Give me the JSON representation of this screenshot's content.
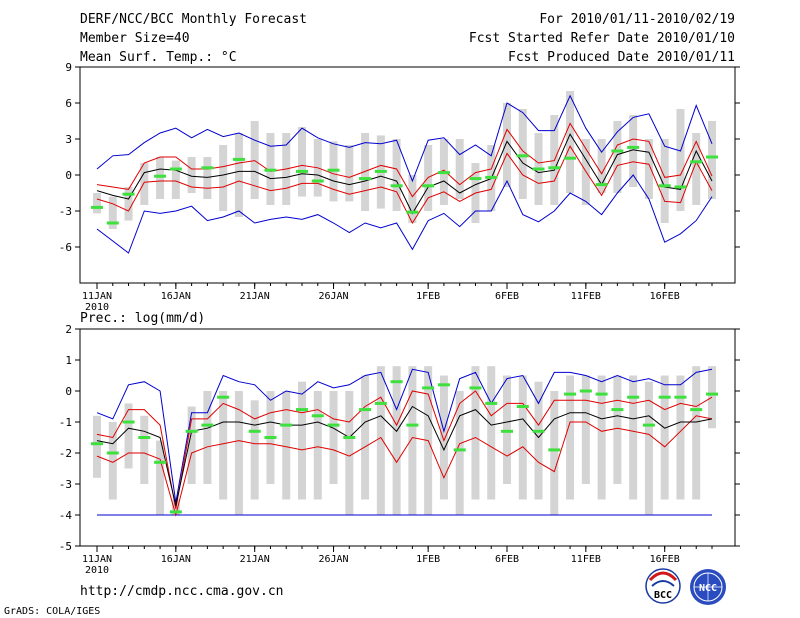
{
  "header": {
    "title": "DERF/NCC/BCC Monthly Forecast",
    "member_size": "Member Size=40",
    "variable": "Mean Surf. Temp.: °C",
    "period": "For 2010/01/11-2010/02/19",
    "start_date": "Fcst Started Refer Date 2010/01/10",
    "produced_date": "Fcst Produced Date 2010/01/11"
  },
  "footer": {
    "url": "http://cmdp.ncc.cma.gov.cn",
    "credit": "GrADS: COLA/IGES",
    "logo_bcc": "BCC",
    "logo_ncc": "NCC"
  },
  "colors": {
    "box": "#d4d4d4",
    "mean": "#000000",
    "spread": "#e00000",
    "extreme": "#0000d0",
    "observed": "#3ee03e"
  },
  "chart_data": [
    {
      "type": "box-plume",
      "name": "temperature",
      "ylabel": "Mean Surf. Temp.: °C",
      "ylim": [
        -9,
        9
      ],
      "yticks": [
        -6,
        -3,
        0,
        3,
        6,
        9
      ],
      "day_count": 40,
      "date_ticks": [
        {
          "day": 0,
          "label": "11JAN",
          "sub": "2010"
        },
        {
          "day": 5,
          "label": "16JAN"
        },
        {
          "day": 10,
          "label": "21JAN"
        },
        {
          "day": 15,
          "label": "26JAN"
        },
        {
          "day": 21,
          "label": "1FEB"
        },
        {
          "day": 26,
          "label": "6FEB"
        },
        {
          "day": 31,
          "label": "11FEB"
        },
        {
          "day": 36,
          "label": "16FEB"
        }
      ],
      "series": {
        "box_low": [
          -3.2,
          -4.5,
          -3.8,
          -2.5,
          -2.0,
          -2.0,
          -1.5,
          -2.0,
          -3.0,
          -3.5,
          -2.0,
          -2.5,
          -2.5,
          -1.8,
          -1.8,
          -2.2,
          -2.2,
          -3.0,
          -2.8,
          -3.0,
          -4.0,
          -3.0,
          -2.5,
          -2.0,
          -4.0,
          -3.0,
          -1.0,
          -2.0,
          -2.5,
          -2.5,
          -1.5,
          -2.5,
          -1.5,
          -1.5,
          -1.0,
          -2.0,
          -4.0,
          -3.0,
          -2.5,
          -2.0
        ],
        "box_high": [
          -1.5,
          -1.8,
          -1.0,
          1.0,
          1.5,
          1.2,
          1.5,
          1.5,
          2.5,
          3.5,
          4.5,
          3.5,
          3.5,
          4.0,
          3.0,
          2.8,
          2.5,
          3.5,
          3.3,
          3.0,
          0.0,
          2.5,
          3.0,
          3.0,
          1.0,
          2.5,
          6.0,
          5.5,
          3.5,
          5.0,
          7.0,
          3.0,
          3.0,
          4.5,
          5.0,
          3.0,
          3.0,
          5.5,
          3.5,
          4.5
        ],
        "min": [
          -4.5,
          -5.5,
          -6.5,
          -3.0,
          -3.2,
          -3.0,
          -2.6,
          -3.8,
          -3.5,
          -3.0,
          -4.0,
          -3.7,
          -3.5,
          -3.7,
          -3.3,
          -4.0,
          -4.8,
          -4.0,
          -4.4,
          -4.0,
          -6.2,
          -3.8,
          -3.2,
          -4.3,
          -3.0,
          -3.0,
          -0.5,
          -3.3,
          -3.9,
          -3.0,
          -1.5,
          -2.2,
          -3.3,
          -1.5,
          0.0,
          -2.0,
          -5.6,
          -4.9,
          -3.8,
          -1.8
        ],
        "max": [
          0.5,
          1.6,
          1.7,
          2.7,
          3.5,
          3.9,
          3.1,
          3.8,
          3.2,
          3.5,
          2.9,
          2.4,
          2.5,
          3.9,
          3.1,
          2.6,
          2.3,
          2.7,
          2.6,
          2.9,
          -0.5,
          2.9,
          3.1,
          1.7,
          2.5,
          1.6,
          6.0,
          5.2,
          3.7,
          3.7,
          6.6,
          3.9,
          1.9,
          3.6,
          4.8,
          5.1,
          2.4,
          2.0,
          5.8,
          2.6
        ],
        "hi": [
          -0.8,
          -1.0,
          -1.2,
          1.0,
          1.5,
          1.5,
          0.5,
          0.5,
          0.7,
          1.0,
          1.2,
          0.3,
          0.5,
          0.8,
          0.6,
          0.1,
          -0.2,
          0.3,
          0.8,
          0.5,
          -1.8,
          -0.2,
          0.4,
          -0.8,
          0.2,
          0.5,
          3.8,
          2.0,
          1.0,
          1.2,
          4.3,
          2.2,
          0.1,
          2.5,
          3.0,
          2.8,
          -0.2,
          0.0,
          2.8,
          -0.1
        ],
        "mean": [
          -1.3,
          -1.7,
          -2.0,
          0.2,
          0.5,
          0.4,
          -0.1,
          -0.2,
          0.0,
          0.3,
          0.3,
          -0.3,
          -0.2,
          0.1,
          0.0,
          -0.5,
          -0.8,
          -0.5,
          -0.1,
          -0.5,
          -3.2,
          -1.0,
          -0.5,
          -1.5,
          -0.8,
          -0.3,
          2.8,
          1.0,
          0.2,
          0.4,
          3.4,
          1.3,
          -0.8,
          1.7,
          2.1,
          1.9,
          -1.0,
          -1.2,
          2.0,
          -0.5
        ],
        "lo": [
          -2.0,
          -2.4,
          -3.0,
          -0.6,
          -0.5,
          -0.5,
          -1.0,
          -1.1,
          -1.0,
          -0.5,
          -0.9,
          -1.3,
          -1.1,
          -0.7,
          -0.7,
          -1.2,
          -1.6,
          -1.3,
          -1.0,
          -1.4,
          -4.0,
          -1.9,
          -1.4,
          -2.2,
          -1.5,
          -1.2,
          1.8,
          0.0,
          -0.7,
          -0.5,
          2.4,
          0.3,
          -1.7,
          0.8,
          1.1,
          0.9,
          -2.2,
          -2.3,
          1.1,
          -1.3
        ],
        "observed": [
          -2.7,
          -4.0,
          -1.6,
          null,
          -0.1,
          0.5,
          null,
          0.6,
          null,
          1.3,
          null,
          0.4,
          null,
          0.3,
          -0.5,
          0.4,
          null,
          -0.3,
          0.3,
          -0.9,
          -3.1,
          -0.9,
          0.2,
          null,
          -0.3,
          -0.2,
          null,
          1.6,
          0.5,
          0.6,
          1.4,
          null,
          -0.8,
          2.0,
          2.3,
          null,
          -0.9,
          -1.0,
          1.1,
          1.5
        ]
      }
    },
    {
      "type": "box-plume",
      "name": "precipitation",
      "ylabel": "Prec.: log(mm/d)",
      "ylim": [
        -5,
        2
      ],
      "yticks": [
        -5,
        -4,
        -3,
        -2,
        -1,
        0,
        1,
        2
      ],
      "day_count": 40,
      "date_ticks": [
        {
          "day": 0,
          "label": "11JAN",
          "sub": "2010"
        },
        {
          "day": 5,
          "label": "16JAN"
        },
        {
          "day": 10,
          "label": "21JAN"
        },
        {
          "day": 15,
          "label": "26JAN"
        },
        {
          "day": 21,
          "label": "1FEB"
        },
        {
          "day": 26,
          "label": "6FEB"
        },
        {
          "day": 31,
          "label": "11FEB"
        },
        {
          "day": 36,
          "label": "16FEB"
        }
      ],
      "series": {
        "box_low": [
          -2.8,
          -3.5,
          -2.5,
          -3.0,
          -4.0,
          -4.0,
          -3.0,
          -3.0,
          -3.5,
          -4.0,
          -3.5,
          -3.0,
          -3.5,
          -3.5,
          -3.5,
          -3.0,
          -4.0,
          -3.5,
          -4.0,
          -4.0,
          -4.0,
          -4.0,
          -3.5,
          -4.0,
          -3.5,
          -3.5,
          -3.0,
          -3.5,
          -3.5,
          -4.0,
          -3.5,
          -3.0,
          -3.5,
          -3.0,
          -3.5,
          -4.0,
          -3.5,
          -3.5,
          -3.5,
          -1.2
        ],
        "box_high": [
          -0.8,
          -1.0,
          -0.4,
          -0.8,
          -1.6,
          -3.5,
          -0.5,
          0.0,
          0.0,
          0.0,
          -0.3,
          0.0,
          0.0,
          0.3,
          0.0,
          0.0,
          0.0,
          0.5,
          0.8,
          0.8,
          0.8,
          0.8,
          0.5,
          0.0,
          0.8,
          0.8,
          0.5,
          0.5,
          0.3,
          0.0,
          0.5,
          0.5,
          0.5,
          0.5,
          0.5,
          0.3,
          0.5,
          0.5,
          0.8,
          0.8
        ],
        "min": [
          -4.0,
          -4.0,
          -4.0,
          -4.0,
          -4.0,
          -4.0,
          -4.0,
          -4.0,
          -4.0,
          -4.0,
          -4.0,
          -4.0,
          -4.0,
          -4.0,
          -4.0,
          -4.0,
          -4.0,
          -4.0,
          -4.0,
          -4.0,
          -4.0,
          -4.0,
          -4.0,
          -4.0,
          -4.0,
          -4.0,
          -4.0,
          -4.0,
          -4.0,
          -4.0,
          -4.0,
          -4.0,
          -4.0,
          -4.0,
          -4.0,
          -4.0,
          -4.0,
          -4.0,
          -4.0,
          -4.0
        ],
        "max": [
          -0.7,
          -0.9,
          0.2,
          0.3,
          0.0,
          -3.6,
          -0.7,
          -0.7,
          0.5,
          0.3,
          0.2,
          -0.3,
          0.0,
          -0.1,
          0.3,
          0.1,
          0.2,
          0.5,
          0.6,
          -0.6,
          0.7,
          0.6,
          -1.3,
          0.4,
          0.6,
          -0.4,
          0.4,
          0.5,
          -0.4,
          0.6,
          0.6,
          0.5,
          0.3,
          0.5,
          0.3,
          0.4,
          0.2,
          0.2,
          0.6,
          0.7
        ],
        "hi": [
          -1.4,
          -1.5,
          -0.6,
          -0.6,
          -1.1,
          -3.8,
          -0.9,
          -0.9,
          -0.4,
          -0.6,
          -0.9,
          -0.7,
          -0.6,
          -0.7,
          -0.6,
          -0.9,
          -1.0,
          -0.5,
          -0.2,
          -1.1,
          0.0,
          -0.1,
          -1.6,
          -0.4,
          0.0,
          -0.8,
          -0.4,
          -0.4,
          -1.1,
          -0.3,
          -0.3,
          -0.3,
          -0.4,
          -0.3,
          -0.4,
          -0.3,
          -0.6,
          -0.4,
          -0.5,
          -0.2
        ],
        "mean": [
          -1.6,
          -1.7,
          -1.2,
          -1.3,
          -1.5,
          -3.7,
          -1.3,
          -1.2,
          -1.0,
          -1.0,
          -1.1,
          -1.0,
          -1.1,
          -1.1,
          -1.0,
          -1.2,
          -1.5,
          -1.0,
          -0.8,
          -1.3,
          -0.5,
          -0.8,
          -1.9,
          -0.8,
          -0.6,
          -1.1,
          -1.0,
          -0.9,
          -1.5,
          -0.9,
          -0.7,
          -0.7,
          -0.9,
          -0.8,
          -0.9,
          -0.8,
          -1.2,
          -1.0,
          -1.0,
          -0.9
        ],
        "lo": [
          -2.1,
          -2.3,
          -2.0,
          -2.0,
          -2.2,
          -4.0,
          -2.0,
          -1.8,
          -1.7,
          -1.6,
          -1.7,
          -1.7,
          -1.8,
          -1.9,
          -1.8,
          -1.9,
          -2.1,
          -1.8,
          -1.5,
          -2.3,
          -1.5,
          -1.6,
          -2.8,
          -1.7,
          -1.5,
          -1.8,
          -2.1,
          -1.8,
          -2.3,
          -2.6,
          -1.0,
          -1.0,
          -1.3,
          -1.2,
          -1.3,
          -1.4,
          -1.8,
          -1.3,
          -0.8,
          -0.9
        ],
        "observed": [
          -1.7,
          -2.0,
          -1.0,
          -1.5,
          -2.3,
          -3.9,
          -1.3,
          -1.1,
          -0.2,
          null,
          -1.3,
          -1.5,
          -1.1,
          -0.6,
          -0.8,
          -1.1,
          -1.5,
          -0.6,
          -0.4,
          0.3,
          -1.1,
          0.1,
          0.2,
          -1.9,
          0.1,
          -0.4,
          -1.3,
          -0.5,
          -1.3,
          -1.9,
          -0.1,
          0.0,
          -0.1,
          -0.6,
          -0.2,
          -1.1,
          -0.2,
          -0.2,
          -0.6,
          -0.1
        ]
      }
    }
  ]
}
